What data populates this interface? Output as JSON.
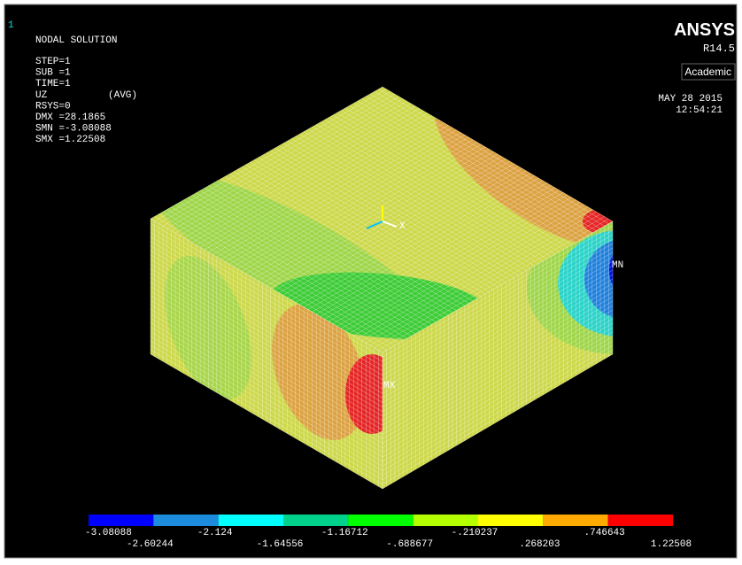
{
  "frame_number": "1",
  "title": "NODAL SOLUTION",
  "info": [
    "STEP=1",
    "SUB =1",
    "TIME=1",
    "UZ",
    "(AVG)",
    "RSYS=0",
    "DMX =28.1865",
    "SMN =-3.08088",
    "SMX =1.22508"
  ],
  "brand": {
    "name": "ANSYS",
    "version": "R14.5",
    "license": "Academic"
  },
  "date": "MAY 28 2015",
  "time": "12:54:21",
  "markers": {
    "min": "MN",
    "max": "MX"
  },
  "triad": {
    "x": "X"
  },
  "legend": {
    "labels": [
      "-3.08088",
      "-2.60244",
      "-2.124",
      "-1.64556",
      "-1.16712",
      "-.688677",
      "-.210237",
      ".268203",
      ".746643",
      "1.22508"
    ],
    "colors": [
      "#0000ff",
      "#1e8cdc",
      "#00ffff",
      "#00d28c",
      "#00ff00",
      "#b4ff00",
      "#ffff00",
      "#ffaa00",
      "#ff0000"
    ]
  }
}
